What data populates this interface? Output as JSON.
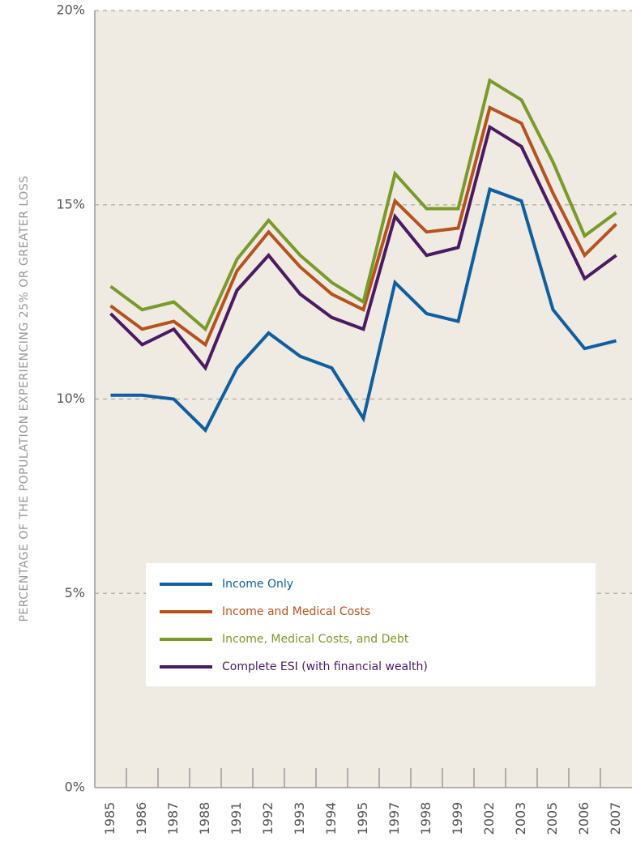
{
  "chart_data": {
    "type": "line",
    "y_label": "PERCENTAGE OF THE POPULATION EXPERIENCING 25% OR GREATER LOSS",
    "categories": [
      "1985",
      "1986",
      "1987",
      "1988",
      "1991",
      "1992",
      "1993",
      "1994",
      "1995",
      "1997",
      "1998",
      "1999",
      "2002",
      "2003",
      "2005",
      "2006",
      "2007"
    ],
    "series": [
      {
        "name": "Income Only",
        "color": "#0f5fa0",
        "values": [
          10.1,
          10.1,
          10.0,
          9.2,
          10.8,
          11.7,
          11.1,
          10.8,
          9.5,
          13.0,
          12.2,
          12.0,
          15.4,
          15.1,
          12.3,
          11.3,
          11.5
        ]
      },
      {
        "name": "Income and Medical Costs",
        "color": "#b5531f",
        "values": [
          12.4,
          11.8,
          12.0,
          11.4,
          13.3,
          14.3,
          13.4,
          12.7,
          12.3,
          15.1,
          14.3,
          14.4,
          17.5,
          17.1,
          15.3,
          13.7,
          14.5
        ]
      },
      {
        "name": "Income, Medical Costs, and Debt",
        "color": "#7a9a2a",
        "values": [
          12.9,
          12.3,
          12.5,
          11.8,
          13.6,
          14.6,
          13.7,
          13.0,
          12.5,
          15.8,
          14.9,
          14.9,
          18.2,
          17.7,
          16.1,
          14.2,
          14.8
        ]
      },
      {
        "name": "Complete ESI (with financial wealth)",
        "color": "#4a1a63",
        "values": [
          12.2,
          11.4,
          11.8,
          10.8,
          12.8,
          13.7,
          12.7,
          12.1,
          11.8,
          14.7,
          13.7,
          13.9,
          17.0,
          16.5,
          14.8,
          13.1,
          13.7
        ]
      }
    ],
    "ylim": [
      0,
      20
    ],
    "yticks": [
      {
        "value": 0,
        "label": "0%"
      },
      {
        "value": 5,
        "label": "5%"
      },
      {
        "value": 10,
        "label": "10%"
      },
      {
        "value": 15,
        "label": "15%"
      },
      {
        "value": 20,
        "label": "20%"
      }
    ],
    "grid": true
  }
}
